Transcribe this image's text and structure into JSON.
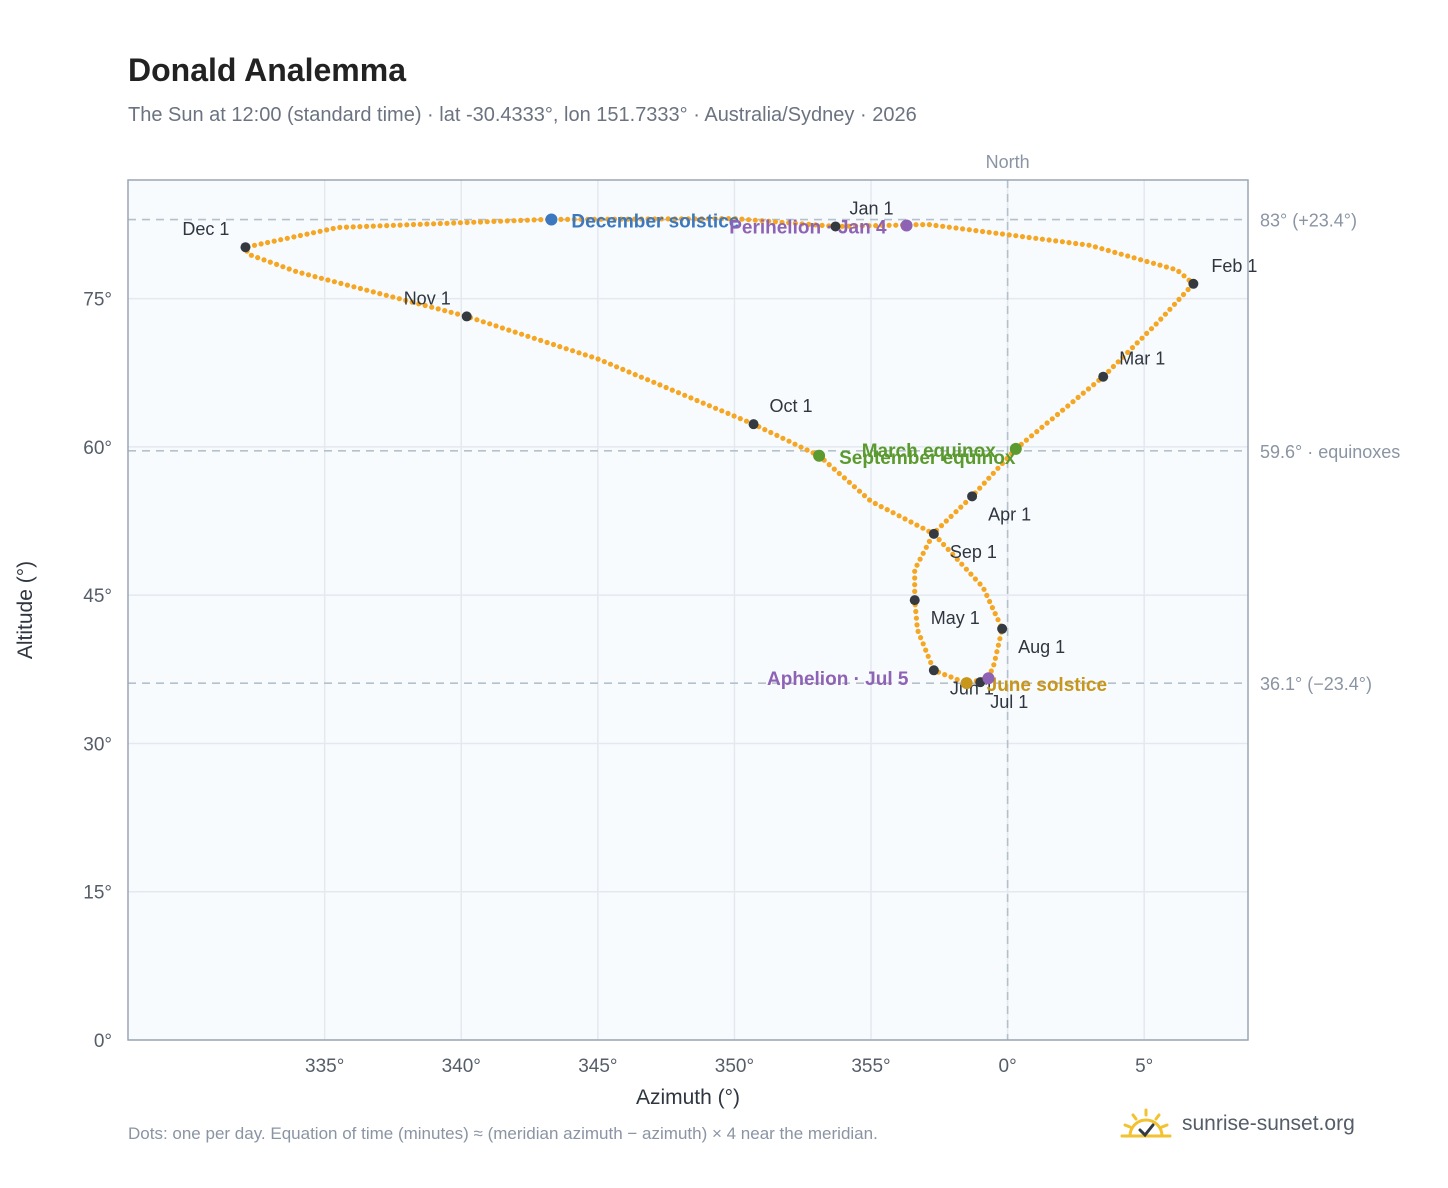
{
  "header": {
    "title": "Donald Analemma",
    "subtitle": "The Sun at 12:00 (standard time) · lat -30.4333°, lon 151.7333° · Australia/Sydney · 2026"
  },
  "footer": {
    "footnote": "Dots: one per day. Equation of time (minutes) ≈ (meridian azimuth − azimuth) × 4 near the meridian.",
    "brand": "sunrise-sunset.org"
  },
  "colors": {
    "path": "#f5a623",
    "month_marker": "#343a40",
    "solstice_december": "#3b78c0",
    "solstice_june": "#c8961a",
    "equinox": "#5a9a2e",
    "apsis": "#8e63b5",
    "reference_line": "#b4c0cc",
    "plot_background": "#f8fbfd",
    "grid": "#e3e9ef",
    "frame": "#9aa6b4"
  },
  "chart_data": {
    "type": "scatter",
    "xlabel": "Azimuth (°)",
    "ylabel": "Altitude (°)",
    "xlim": [
      -32.2,
      8.8
    ],
    "ylim": [
      0,
      87
    ],
    "x_ticks": [
      -25,
      -20,
      -15,
      -10,
      -5,
      0,
      5
    ],
    "x_tick_labels": [
      "335°",
      "340°",
      "345°",
      "350°",
      "355°",
      "0°",
      "5°"
    ],
    "y_ticks": [
      0,
      15,
      30,
      45,
      60,
      75
    ],
    "y_tick_labels": [
      "0°",
      "15°",
      "30°",
      "45°",
      "60°",
      "75°"
    ],
    "grid": true,
    "north_line": {
      "azimuth": 0,
      "label": "North"
    },
    "reference_lines": [
      {
        "altitude": 83.0,
        "label": "83° (+23.4°)"
      },
      {
        "altitude": 59.6,
        "label": "59.6° · equinoxes"
      },
      {
        "altitude": 36.1,
        "label": "36.1° (−23.4°)"
      }
    ],
    "series": [
      {
        "marker": "dot",
        "path_points": [
          [
            -6.3,
            82.3
          ],
          [
            -2.9,
            82.5
          ],
          [
            3.0,
            80.4
          ],
          [
            6.2,
            77.9
          ],
          [
            6.8,
            76.5
          ],
          [
            5.5,
            72.6
          ],
          [
            3.5,
            67.1
          ],
          [
            0.3,
            59.8
          ],
          [
            -1.3,
            55.0
          ],
          [
            -2.7,
            51.3
          ],
          [
            -3.4,
            47.6
          ],
          [
            -3.4,
            44.5
          ],
          [
            -3.3,
            41.5
          ],
          [
            -2.7,
            37.4
          ],
          [
            -1.5,
            36.1
          ],
          [
            -0.7,
            36.6
          ],
          [
            -0.5,
            38.0
          ],
          [
            -0.2,
            41.6
          ],
          [
            -0.9,
            45.8
          ],
          [
            -2.7,
            51.2
          ],
          [
            -5.0,
            54.5
          ],
          [
            -6.9,
            59.1
          ],
          [
            -9.3,
            62.3
          ],
          [
            -15.0,
            68.9
          ],
          [
            -19.8,
            73.2
          ],
          [
            -26.0,
            77.7
          ],
          [
            -27.8,
            79.5
          ],
          [
            -27.9,
            80.2
          ],
          [
            -24.5,
            82.2
          ],
          [
            -17.0,
            83.0
          ],
          [
            -10.0,
            83.1
          ],
          [
            -6.3,
            82.3
          ]
        ]
      }
    ],
    "month_markers": [
      {
        "label": "Jan 1",
        "azimuth": -6.3,
        "altitude": 82.3
      },
      {
        "label": "Feb 1",
        "azimuth": 6.8,
        "altitude": 76.5
      },
      {
        "label": "Mar 1",
        "azimuth": 3.5,
        "altitude": 67.1
      },
      {
        "label": "Apr 1",
        "azimuth": -1.3,
        "altitude": 55.0
      },
      {
        "label": "May 1",
        "azimuth": -3.4,
        "altitude": 44.5
      },
      {
        "label": "Jun 1",
        "azimuth": -2.7,
        "altitude": 37.4
      },
      {
        "label": "Jul 1",
        "azimuth": -1.0,
        "altitude": 36.2
      },
      {
        "label": "Aug 1",
        "azimuth": -0.2,
        "altitude": 41.6
      },
      {
        "label": "Sep 1",
        "azimuth": -2.7,
        "altitude": 51.2
      },
      {
        "label": "Oct 1",
        "azimuth": -9.3,
        "altitude": 62.3
      },
      {
        "label": "Nov 1",
        "azimuth": -19.8,
        "altitude": 73.2
      },
      {
        "label": "Dec 1",
        "azimuth": -27.9,
        "altitude": 80.2
      }
    ],
    "events": [
      {
        "label": "December solstice",
        "azimuth": -16.7,
        "altitude": 83.0,
        "kind": "solstice_december"
      },
      {
        "label": "Perihelion · Jan 4",
        "azimuth": -3.7,
        "altitude": 82.4,
        "kind": "apsis"
      },
      {
        "label": "March equinox",
        "azimuth": 0.3,
        "altitude": 59.8,
        "kind": "equinox"
      },
      {
        "label": "September equinox",
        "azimuth": -6.9,
        "altitude": 59.1,
        "kind": "equinox"
      },
      {
        "label": "June solstice",
        "azimuth": -1.5,
        "altitude": 36.1,
        "kind": "solstice_june"
      },
      {
        "label": "Aphelion · Jul 5",
        "azimuth": -0.7,
        "altitude": 36.6,
        "kind": "apsis"
      }
    ]
  }
}
